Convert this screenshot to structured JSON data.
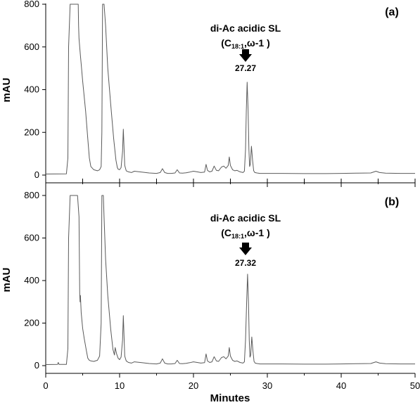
{
  "chart_data": [
    {
      "type": "line",
      "panel_label": "(a)",
      "ylabel": "mAU",
      "xlabel": "",
      "xlim": [
        0,
        50
      ],
      "ylim": [
        0,
        800
      ],
      "yticks": [
        "0",
        "200",
        "400",
        "600",
        "800"
      ],
      "annotation": {
        "line1": "di-Ac acidic SL",
        "line2_pre": "(C",
        "line2_sub": "18:1",
        "line2_post": ",ω-1 )",
        "peak_label": "27.27",
        "peak_x": 27.27,
        "peak_y": 435
      },
      "series": [
        {
          "x": [
            0.0,
            2.8,
            3.0,
            3.1,
            3.3,
            3.5,
            3.9,
            4.2,
            4.4,
            4.45,
            4.5,
            4.6,
            4.7,
            4.8,
            5.0,
            5.4,
            5.7,
            5.9,
            6.1,
            6.5,
            7.0,
            7.3,
            7.5,
            7.6,
            7.7,
            7.8,
            7.9,
            8.1,
            8.4,
            8.8,
            9.2,
            9.5,
            9.7,
            9.8,
            10.0,
            10.2,
            10.4,
            10.5,
            10.6,
            10.7,
            10.9,
            11.2,
            11.6,
            12.0,
            13.0,
            14.0,
            15.0,
            15.5,
            15.8,
            16.1,
            16.5,
            17.0,
            17.5,
            17.8,
            18.1,
            18.5,
            19.0,
            19.5,
            20.0,
            20.5,
            21.0,
            21.5,
            21.7,
            21.9,
            22.2,
            22.5,
            22.8,
            23.1,
            23.4,
            23.8,
            24.1,
            24.4,
            24.7,
            24.85,
            25.0,
            25.3,
            25.6,
            25.9,
            26.3,
            26.7,
            26.9,
            27.05,
            27.15,
            27.27,
            27.4,
            27.5,
            27.6,
            27.7,
            27.85,
            28.0,
            28.15,
            28.3,
            28.6,
            29.0,
            30.0,
            32.0,
            35.0,
            38.0,
            40.0,
            42.0,
            44.0,
            44.7,
            45.2,
            46.0,
            48.0,
            50.0
          ],
          "y": [
            5,
            6,
            80,
            600,
            800,
            800,
            800,
            800,
            800,
            700,
            640,
            600,
            560,
            520,
            440,
            300,
            170,
            80,
            40,
            25,
            20,
            25,
            40,
            200,
            800,
            800,
            800,
            700,
            500,
            330,
            170,
            70,
            35,
            28,
            25,
            35,
            110,
            215,
            130,
            45,
            20,
            15,
            12,
            18,
            14,
            10,
            8,
            12,
            30,
            12,
            8,
            8,
            10,
            25,
            10,
            9,
            11,
            14,
            18,
            15,
            12,
            14,
            50,
            22,
            15,
            18,
            42,
            22,
            20,
            38,
            42,
            32,
            45,
            85,
            45,
            25,
            20,
            22,
            15,
            12,
            18,
            120,
            300,
            435,
            300,
            120,
            40,
            50,
            135,
            70,
            20,
            12,
            10,
            8,
            8,
            8,
            7,
            7,
            8,
            9,
            10,
            18,
            12,
            9,
            8,
            8
          ]
        }
      ]
    },
    {
      "type": "line",
      "panel_label": "(b)",
      "ylabel": "mAU",
      "xlabel": "Minutes",
      "xlim": [
        0,
        50
      ],
      "ylim": [
        0,
        800
      ],
      "xticks": [
        "0",
        "10",
        "20",
        "30",
        "40",
        "50"
      ],
      "yticks": [
        "0",
        "200",
        "400",
        "600",
        "800"
      ],
      "annotation": {
        "line1": "di-Ac acidic SL",
        "line2_pre": "(C",
        "line2_sub": "18:1",
        "line2_post": ",ω-1 )",
        "peak_label": "27.32",
        "peak_x": 27.32,
        "peak_y": 430
      },
      "series": [
        {
          "x": [
            0.0,
            1.6,
            1.7,
            1.8,
            2.8,
            3.0,
            3.1,
            3.3,
            3.5,
            3.9,
            4.3,
            4.5,
            4.6,
            4.65,
            4.7,
            4.8,
            5.0,
            5.2,
            5.5,
            5.7,
            5.9,
            6.1,
            6.5,
            7.0,
            7.3,
            7.5,
            7.6,
            7.7,
            7.8,
            7.9,
            8.1,
            8.4,
            8.8,
            9.1,
            9.3,
            9.4,
            9.6,
            9.8,
            10.0,
            10.2,
            10.4,
            10.5,
            10.6,
            10.7,
            10.9,
            11.2,
            11.6,
            12.0,
            13.0,
            14.0,
            15.0,
            15.5,
            15.8,
            16.1,
            16.5,
            17.0,
            17.5,
            17.8,
            18.1,
            18.5,
            19.0,
            19.5,
            20.0,
            20.5,
            21.0,
            21.5,
            21.7,
            21.9,
            22.2,
            22.5,
            22.8,
            23.1,
            23.4,
            23.8,
            24.1,
            24.4,
            24.7,
            24.85,
            25.0,
            25.3,
            25.6,
            25.9,
            26.3,
            26.7,
            26.9,
            27.05,
            27.2,
            27.32,
            27.45,
            27.55,
            27.65,
            27.75,
            27.9,
            28.05,
            28.2,
            28.35,
            28.6,
            29.0,
            30.0,
            32.0,
            35.0,
            38.0,
            40.0,
            42.0,
            44.0,
            44.7,
            45.2,
            46.0,
            48.0,
            50.0
          ],
          "y": [
            5,
            6,
            15,
            6,
            6,
            80,
            600,
            800,
            800,
            800,
            800,
            700,
            340,
            300,
            330,
            250,
            175,
            130,
            70,
            35,
            25,
            22,
            20,
            25,
            45,
            200,
            800,
            800,
            800,
            700,
            500,
            330,
            170,
            75,
            50,
            85,
            55,
            35,
            28,
            40,
            120,
            235,
            140,
            45,
            22,
            15,
            12,
            18,
            14,
            10,
            8,
            12,
            32,
            12,
            8,
            8,
            10,
            25,
            10,
            9,
            11,
            14,
            18,
            15,
            12,
            14,
            55,
            22,
            15,
            18,
            42,
            22,
            20,
            38,
            42,
            32,
            45,
            85,
            45,
            25,
            20,
            22,
            15,
            12,
            18,
            120,
            300,
            430,
            300,
            120,
            40,
            50,
            135,
            70,
            20,
            12,
            10,
            8,
            8,
            8,
            7,
            7,
            8,
            9,
            10,
            18,
            12,
            9,
            8,
            8
          ]
        }
      ]
    }
  ]
}
